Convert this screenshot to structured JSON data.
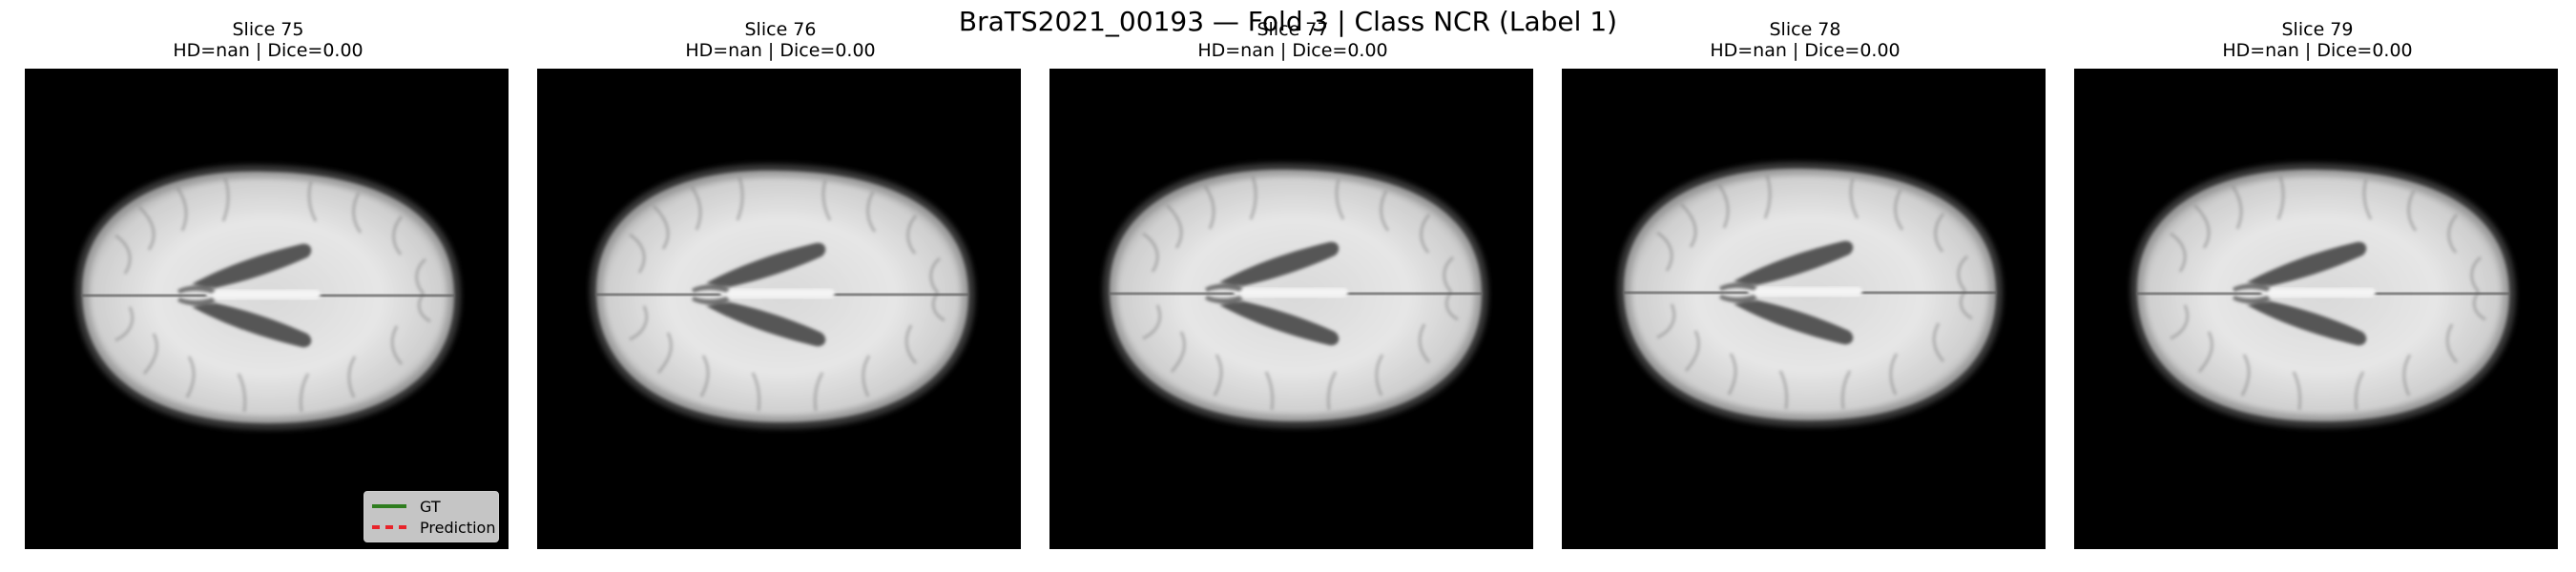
{
  "figure": {
    "suptitle": "BraTS2021_00193 — Fold 3 | Class NCR (Label 1)"
  },
  "panels": [
    {
      "title": "Slice 75",
      "metrics": "HD=nan | Dice=0.00"
    },
    {
      "title": "Slice 76",
      "metrics": "HD=nan | Dice=0.00"
    },
    {
      "title": "Slice 77",
      "metrics": "HD=nan | Dice=0.00"
    },
    {
      "title": "Slice 78",
      "metrics": "HD=nan | Dice=0.00"
    },
    {
      "title": "Slice 79",
      "metrics": "HD=nan | Dice=0.00"
    }
  ],
  "legend": {
    "gt_label": "GT",
    "prediction_label": "Prediction",
    "gt_color": "#2e7d1e",
    "prediction_color": "#e8232a"
  }
}
